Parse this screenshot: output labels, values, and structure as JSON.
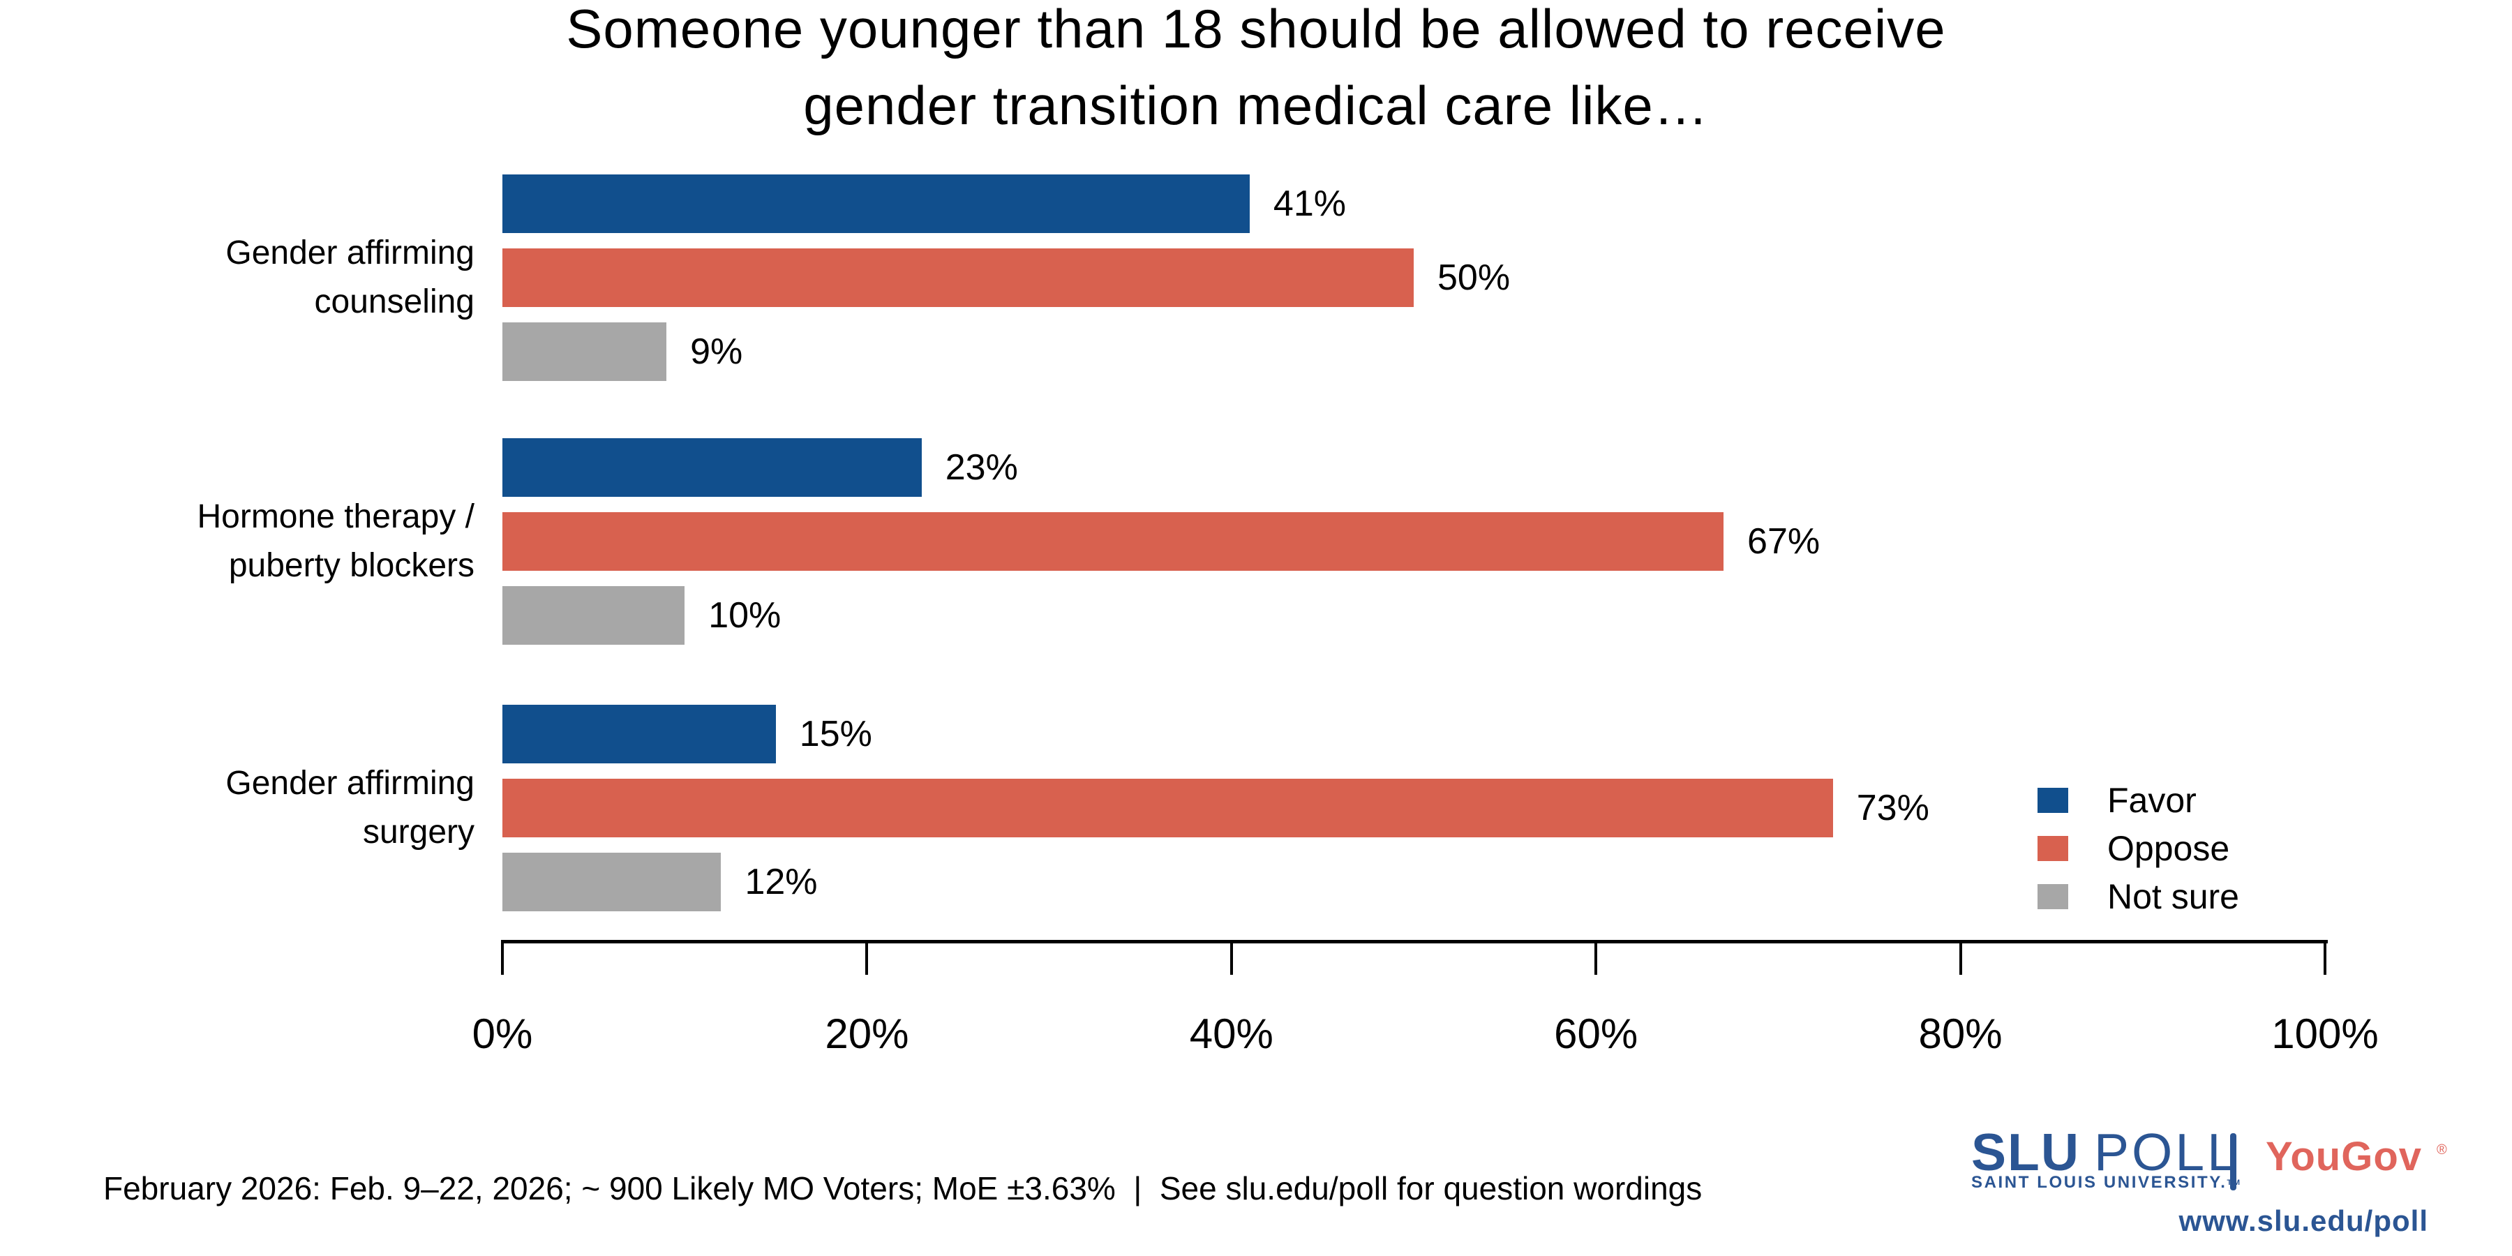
{
  "page": {
    "background": "#ffffff"
  },
  "title": {
    "line1": "Someone younger than 18 should be allowed to receive",
    "line2": "gender transition medical care like…"
  },
  "chart_data": {
    "type": "bar",
    "orientation": "horizontal",
    "title": "Someone younger than 18 should be allowed to receive gender transition medical care like…",
    "categories": [
      "Gender affirming counseling",
      "Hormone therapy / puberty blockers",
      "Gender affirming surgery"
    ],
    "category_label_lines": [
      [
        "Gender affirming",
        "counseling"
      ],
      [
        "Hormone therapy /",
        "puberty blockers"
      ],
      [
        "Gender affirming",
        "surgery"
      ]
    ],
    "series": [
      {
        "name": "Favor",
        "color": "#114F8D",
        "values": [
          41,
          23,
          15
        ]
      },
      {
        "name": "Oppose",
        "color": "#D8614F",
        "values": [
          50,
          67,
          73
        ]
      },
      {
        "name": "Not sure",
        "color": "#A7A7A7",
        "values": [
          9,
          10,
          12
        ]
      }
    ],
    "value_suffix": "%",
    "xlim": [
      0,
      100
    ],
    "x_ticks": [
      "0%",
      "20%",
      "40%",
      "60%",
      "80%",
      "100%"
    ],
    "grid": false,
    "legend": {
      "position": "center-right",
      "entries": [
        "Favor",
        "Oppose",
        "Not sure"
      ]
    }
  },
  "footer": {
    "text": "February 2026: Feb. 9–22, 2026; ~ 900 Likely MO Voters; MoE ±3.63%  |  See slu.edu/poll for question wordings"
  },
  "branding": {
    "slu_poll_bold": "SLU",
    "slu_poll_regular": "POLL",
    "slu_subtext": "SAINT LOUIS UNIVERSITY.",
    "slu_trademark": "TM",
    "yougov_wordmark": "YouGov",
    "yougov_registered": "®",
    "website": "www.slu.edu/poll",
    "slu_blue": "#2B5593",
    "yougov_red": "#E0655C"
  }
}
